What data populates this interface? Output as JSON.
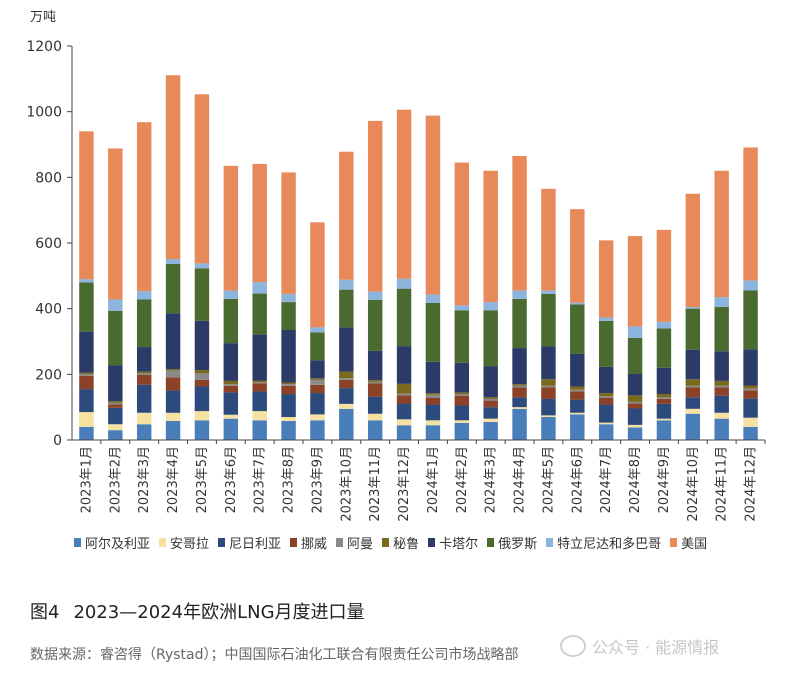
{
  "unit_label": "万吨",
  "caption": {
    "figure_no": "图4",
    "title": "2023—2024年欧洲LNG月度进口量"
  },
  "source": "数据来源：睿咨得（Rystad）；中国国际石油化工联合有限责任公司市场战略部",
  "watermark": {
    "text": "公众号 · 能源情报",
    "icon": "wechat-icon"
  },
  "chart_data": {
    "type": "bar",
    "stacked": true,
    "title": "",
    "xlabel": "",
    "ylabel": "",
    "ylim": [
      0,
      1200
    ],
    "yticks": [
      0,
      200,
      400,
      600,
      800,
      1000,
      1200
    ],
    "grid": false,
    "legend_position": "bottom",
    "categories": [
      "2023年1月",
      "2023年2月",
      "2023年3月",
      "2023年4月",
      "2023年5月",
      "2023年6月",
      "2023年7月",
      "2023年8月",
      "2023年9月",
      "2023年10月",
      "2023年11月",
      "2023年12月",
      "2024年1月",
      "2024年2月",
      "2024年3月",
      "2024年4月",
      "2024年5月",
      "2024年6月",
      "2024年7月",
      "2024年8月",
      "2024年9月",
      "2024年10月",
      "2024年11月",
      "2024年12月"
    ],
    "series": [
      {
        "name": "阿尔及利亚",
        "color": "#4a7ebb",
        "values": [
          40,
          30,
          48,
          58,
          60,
          65,
          60,
          58,
          60,
          95,
          60,
          45,
          45,
          52,
          55,
          95,
          70,
          78,
          48,
          38,
          60,
          80,
          65,
          40
        ]
      },
      {
        "name": "安哥拉",
        "color": "#f5e2a0",
        "values": [
          45,
          18,
          35,
          25,
          28,
          12,
          28,
          12,
          18,
          15,
          20,
          18,
          15,
          8,
          10,
          5,
          5,
          5,
          5,
          8,
          5,
          15,
          18,
          28
        ]
      },
      {
        "name": "尼日利亚",
        "color": "#2c4a7c",
        "values": [
          70,
          50,
          85,
          68,
          75,
          68,
          60,
          70,
          65,
          48,
          52,
          48,
          48,
          45,
          35,
          30,
          50,
          40,
          55,
          50,
          45,
          35,
          52,
          58
        ]
      },
      {
        "name": "挪威",
        "color": "#8b4226",
        "values": [
          40,
          10,
          30,
          40,
          20,
          20,
          25,
          25,
          25,
          25,
          40,
          25,
          20,
          30,
          20,
          30,
          35,
          25,
          20,
          15,
          15,
          30,
          25,
          25
        ]
      },
      {
        "name": "阿曼",
        "color": "#8a8a8a",
        "values": [
          5,
          5,
          5,
          20,
          20,
          5,
          3,
          5,
          15,
          5,
          5,
          5,
          10,
          5,
          5,
          5,
          5,
          5,
          5,
          5,
          5,
          5,
          5,
          5
        ]
      },
      {
        "name": "秘鲁",
        "color": "#7a6a20",
        "values": [
          5,
          5,
          5,
          5,
          10,
          10,
          5,
          5,
          5,
          20,
          5,
          30,
          5,
          5,
          5,
          5,
          20,
          10,
          10,
          20,
          10,
          20,
          15,
          10
        ]
      },
      {
        "name": "卡塔尔",
        "color": "#2b3a66",
        "values": [
          125,
          110,
          75,
          170,
          150,
          115,
          140,
          160,
          55,
          135,
          90,
          115,
          95,
          90,
          95,
          110,
          100,
          100,
          80,
          65,
          80,
          90,
          90,
          110
        ]
      },
      {
        "name": "俄罗斯",
        "color": "#4a6a30",
        "values": [
          150,
          165,
          145,
          150,
          160,
          135,
          125,
          85,
          85,
          115,
          155,
          175,
          180,
          160,
          170,
          150,
          160,
          150,
          140,
          110,
          120,
          125,
          135,
          180
        ]
      },
      {
        "name": "特立尼达和多巴哥",
        "color": "#8cb4dd",
        "values": [
          10,
          35,
          25,
          15,
          15,
          25,
          35,
          25,
          15,
          30,
          25,
          30,
          25,
          15,
          25,
          25,
          10,
          5,
          10,
          35,
          20,
          5,
          30,
          30
        ]
      },
      {
        "name": "美国",
        "color": "#e8895a",
        "values": [
          450,
          460,
          515,
          560,
          515,
          380,
          360,
          370,
          320,
          390,
          520,
          515,
          545,
          435,
          400,
          410,
          310,
          285,
          235,
          275,
          280,
          345,
          385,
          405
        ]
      }
    ]
  }
}
